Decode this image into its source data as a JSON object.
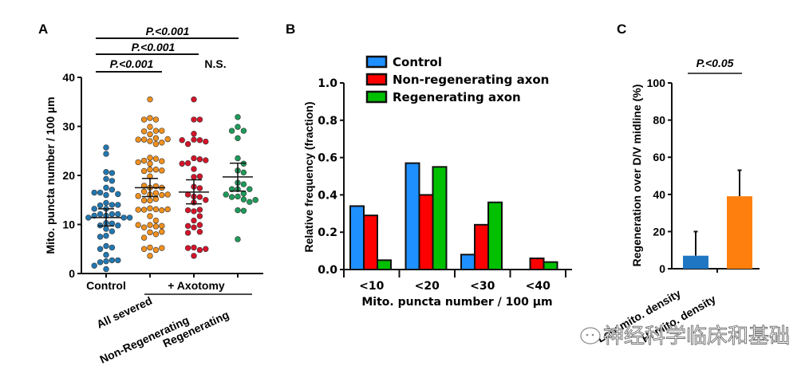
{
  "chart_data": [
    {
      "panel": "A",
      "type": "scatter",
      "ylabel": "Mito. puncta number  / 100 µm",
      "ylim": [
        0,
        40
      ],
      "yticks": [
        "0",
        "10",
        "20",
        "30",
        "40"
      ],
      "categories": [
        "Control",
        "All severed",
        "Non-Regenerating",
        "Regenerating"
      ],
      "group_label": "+ Axotomy",
      "colors": {
        "Control": "#2277b0",
        "All severed": "#f0901e",
        "Non-Regenerating": "#d3142a",
        "Regenerating": "#1e9a5a"
      },
      "series": [
        {
          "name": "Control",
          "mean": 11.4,
          "sem_low": 9.7,
          "sem_high": 13.2,
          "values": [
            25.7,
            24.4,
            20.7,
            20.5,
            19.3,
            18.9,
            17.5,
            17.1,
            16.5,
            16.0,
            16.2,
            16.5,
            14.4,
            14.0,
            13.9,
            14.0,
            13.2,
            13.2,
            12.1,
            12.1,
            12.1,
            11.8,
            11.8,
            11.4,
            11.4,
            11.4,
            10.3,
            10.2,
            9.8,
            9.8,
            9.1,
            8.6,
            7.7,
            7.5,
            5.6,
            5.3,
            5.0,
            3.8,
            2.7,
            2.5,
            2.3,
            2.7,
            1.6,
            0.9
          ]
        },
        {
          "name": "All severed",
          "mean": 17.5,
          "sem_low": 15.7,
          "sem_high": 19.4,
          "values": [
            35.5,
            31.7,
            31.4,
            31.4,
            29.9,
            29.1,
            29.0,
            29.1,
            28.4,
            27.6,
            27.3,
            27.0,
            26.7,
            26.4,
            27.3,
            27.4,
            23.6,
            23.4,
            23.0,
            22.9,
            22.7,
            22.4,
            21.2,
            21.2,
            20.9,
            21.0,
            19.8,
            17.5,
            17.8,
            17.9,
            17.5,
            16.7,
            16.4,
            16.1,
            16.0,
            15.8,
            16.1,
            14.9,
            15.2,
            14.9,
            13.3,
            13.1,
            13.0,
            12.9,
            13.0,
            13.1,
            11.7,
            10.8,
            9.9,
            9.6,
            9.4,
            9.7,
            9.9,
            8.4,
            8.5,
            8.0,
            7.3,
            5.3,
            4.8,
            5.0,
            5.2,
            3.6
          ]
        },
        {
          "name": "Non-Regenerating",
          "mean": 16.6,
          "sem_low": 14.2,
          "sem_high": 19.1,
          "values": [
            35.5,
            31.4,
            31.4,
            28.5,
            27.3,
            27.2,
            26.4,
            26.9,
            27.2,
            23.5,
            23.3,
            22.5,
            23.1,
            22.4,
            21.3,
            19.7,
            19.8,
            17.7,
            17.4,
            15.7,
            15.6,
            16.1,
            14.5,
            15.0,
            12.7,
            13.0,
            12.9,
            11.7,
            10.8,
            9.9,
            9.4,
            9.7,
            8.5,
            8.3,
            5.3,
            4.8,
            5.2,
            5.0,
            3.6
          ]
        },
        {
          "name": "Regenerating",
          "mean": 19.7,
          "sem_low": 16.8,
          "sem_high": 22.5,
          "values": [
            31.9,
            29.9,
            29.1,
            29.1,
            27.6,
            23.5,
            22.4,
            21.0,
            20.6,
            18.5,
            18.2,
            17.2,
            17.2,
            17.2,
            16.3,
            16.1,
            15.7,
            15.6,
            15.1,
            14.6,
            15.0,
            12.9,
            12.8,
            7.0
          ]
        }
      ],
      "annotations": [
        {
          "text": "P.<0.001",
          "from": "Control",
          "to": "Regenerating"
        },
        {
          "text": "P.<0.001",
          "from": "Control",
          "to": "Non-Regenerating"
        },
        {
          "text": "P.<0.001",
          "from": "Control",
          "to": "All severed"
        },
        {
          "text": "N.S.",
          "at": "Regenerating"
        }
      ]
    },
    {
      "panel": "B",
      "type": "bar",
      "xlabel": "Mito. puncta number / 100 µm",
      "ylabel": "Relative frequency (fraction)",
      "ylim": [
        0,
        1.0
      ],
      "yticks": [
        "0.0",
        "0.2",
        "0.4",
        "0.6",
        "0.8",
        "1.0"
      ],
      "categories": [
        "<10",
        "<20",
        "<30",
        "<40"
      ],
      "legend_position": "top",
      "series": [
        {
          "name": "Control",
          "color": "#1e90ff",
          "values": [
            0.34,
            0.57,
            0.08,
            0.0
          ]
        },
        {
          "name": "Non-regenerating axon",
          "color": "#ff0000",
          "values": [
            0.29,
            0.4,
            0.24,
            0.06
          ]
        },
        {
          "name": "Regenerating axon",
          "color": "#00c000",
          "values": [
            0.05,
            0.55,
            0.36,
            0.04
          ]
        }
      ]
    },
    {
      "panel": "C",
      "type": "bar",
      "ylabel": "Regeneration over D/V midline (%)",
      "ylim": [
        0,
        100
      ],
      "yticks": [
        "0",
        "20",
        "40",
        "60",
        "80",
        "100"
      ],
      "categories": [
        "Low mito. density",
        "Hi mito. density"
      ],
      "values": [
        7,
        39
      ],
      "error_high": [
        20,
        53
      ],
      "colors": [
        "#1f77c4",
        "#ff7f0e"
      ],
      "annotations": [
        {
          "text": "P.<0.05",
          "from": "Low mito. density",
          "to": "Hi mito. density"
        }
      ]
    }
  ],
  "panel_letters": [
    "A",
    "B",
    "C"
  ],
  "watermark": "神经科学临床和基础"
}
